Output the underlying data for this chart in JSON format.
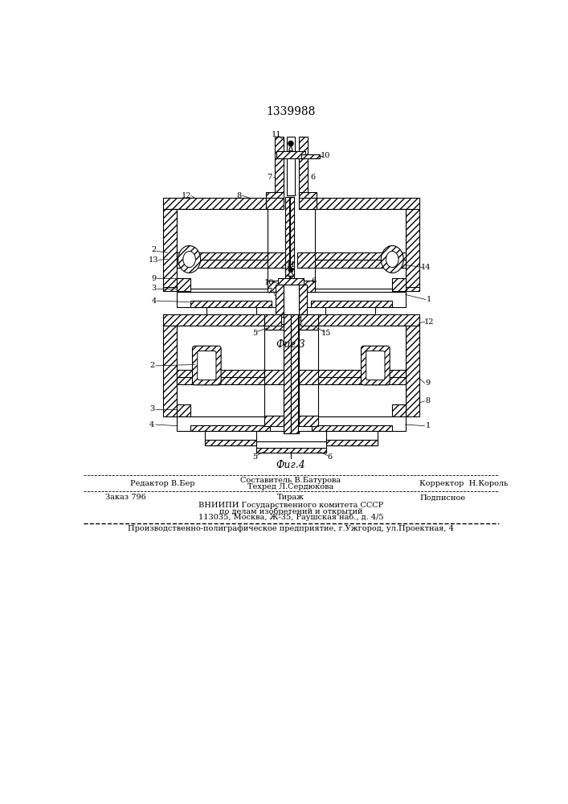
{
  "patent_number": "1339988",
  "fig3_label": "Фиг.3",
  "fig4_label": "Фиг.4",
  "bg_color": "#ffffff",
  "line_color": "#000000",
  "footer": {
    "editor": "Редактор В.Бер",
    "composer": "Составитель В.Батурова",
    "techred": "Техред Л.Сердюкова",
    "corrector": "Корректор  Н.Король",
    "order": "Заказ 796",
    "tirazh": "Тираж",
    "podpisnoe": "Подписное",
    "vniipii_line1": "ВНИИПИ Государственного комитета СССР",
    "vniipii_line2": "по делам изобретений и открытий",
    "vniipii_line3": "113035, Москва, Ж-35, Раушская наб., д. 4/5",
    "production": "Производственно-полиграфическое предприятие, г.Ужгород, ул.Проектная, 4"
  }
}
